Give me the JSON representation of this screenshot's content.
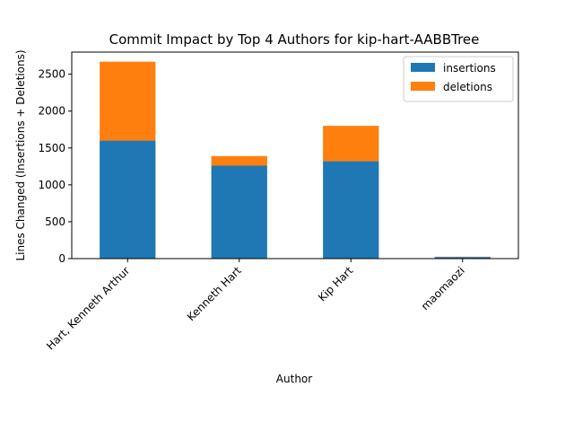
{
  "chart_data": {
    "type": "bar",
    "stacked": true,
    "title": "Commit Impact by Top 4 Authors for kip-hart-AABBTree",
    "xlabel": "Author",
    "ylabel": "Lines Changed (Insertions + Deletions)",
    "categories": [
      "Hart, Kenneth Arthur",
      "Kenneth Hart",
      "Kip Hart",
      "maomaozi"
    ],
    "series": [
      {
        "name": "insertions",
        "color": "#1f77b4",
        "values": [
          1600,
          1260,
          1320,
          22
        ]
      },
      {
        "name": "deletions",
        "color": "#ff7f0e",
        "values": [
          1070,
          130,
          480,
          4
        ]
      }
    ],
    "ylim": [
      0,
      2800
    ],
    "yticks": [
      0,
      500,
      1000,
      1500,
      2000,
      2500
    ],
    "grid": false,
    "legend_position": "top-right"
  }
}
